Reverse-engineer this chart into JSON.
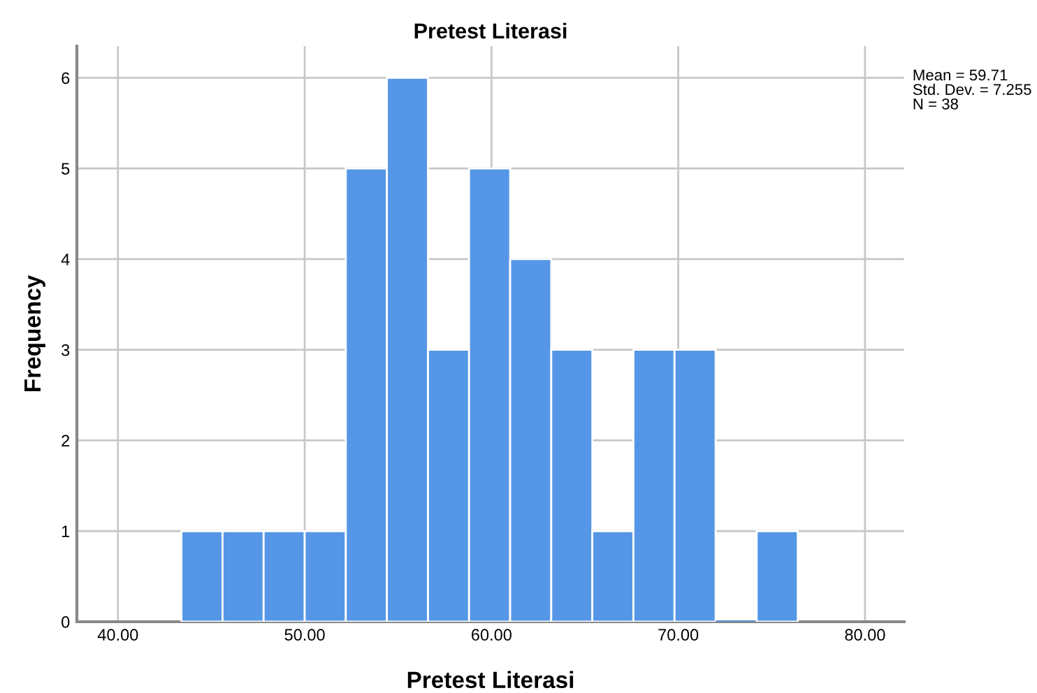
{
  "chart_data": {
    "type": "histogram",
    "title": "Pretest Literasi",
    "xlabel": "Pretest Literasi",
    "ylabel": "Frequency",
    "bins": [
      43.4,
      45.6,
      47.8,
      50.0,
      52.2,
      54.4,
      56.6,
      58.8,
      61.0,
      63.2,
      65.4,
      67.6,
      69.8,
      72.0,
      74.2,
      76.4
    ],
    "values": [
      1,
      1,
      1,
      1,
      5,
      6,
      3,
      5,
      4,
      3,
      1,
      3,
      3,
      0,
      1
    ],
    "color": "#5596e6",
    "xlim": [
      37.8,
      82.1
    ],
    "xticks": [
      {
        "value": 40,
        "label": "40.00"
      },
      {
        "value": 50,
        "label": "50.00"
      },
      {
        "value": 60,
        "label": "60.00"
      },
      {
        "value": 70,
        "label": "70.00"
      },
      {
        "value": 80,
        "label": "80.00"
      }
    ],
    "ylim": [
      0,
      6.35
    ],
    "yticks": [
      0,
      1,
      2,
      3,
      4,
      5,
      6
    ],
    "grid": true,
    "legend": false,
    "annotations": [
      "Mean = 59.71\nStd. Dev. = 7.255\nN = 38"
    ]
  }
}
